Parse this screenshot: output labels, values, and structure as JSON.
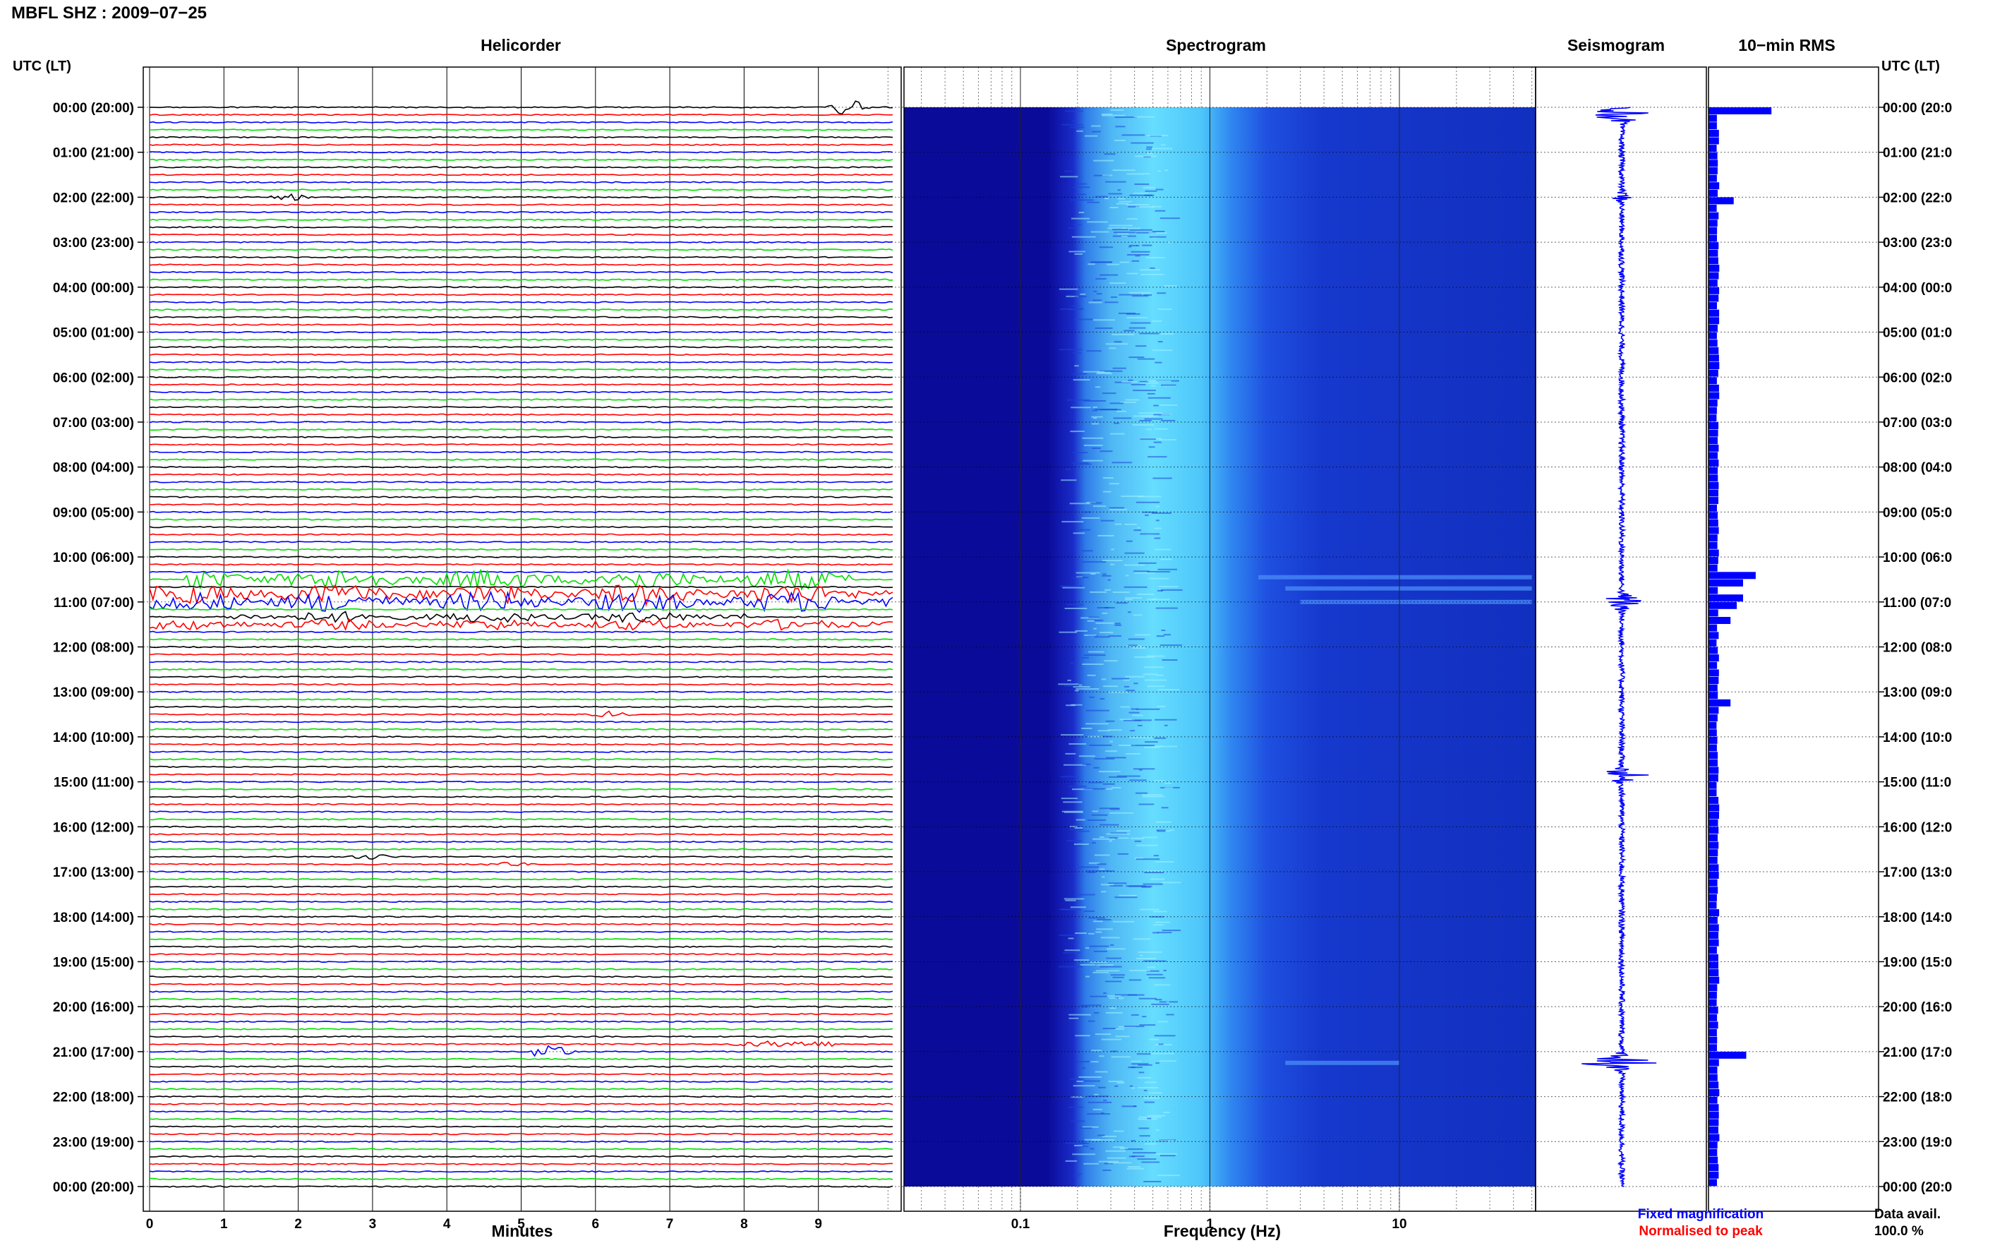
{
  "header": {
    "title": "MBFL SHZ : 2009−07−25"
  },
  "panels": {
    "helicorder": "Helicorder",
    "spectrogram": "Spectrogram",
    "seismogram": "Seismogram",
    "rms": "10−min RMS"
  },
  "axis": {
    "left_title": "UTC (LT)",
    "right_title": "UTC (LT)",
    "minutes_label": "Minutes",
    "frequency_label": "Frequency (Hz)"
  },
  "time_labels": [
    "00:00 (20:00)",
    "01:00 (21:00)",
    "02:00 (22:00)",
    "03:00 (23:00)",
    "04:00 (00:00)",
    "05:00 (01:00)",
    "06:00 (02:00)",
    "07:00 (03:00)",
    "08:00 (04:00)",
    "09:00 (05:00)",
    "10:00 (06:00)",
    "11:00 (07:00)",
    "12:00 (08:00)",
    "13:00 (09:00)",
    "14:00 (10:00)",
    "15:00 (11:00)",
    "16:00 (12:00)",
    "17:00 (13:00)",
    "18:00 (14:00)",
    "19:00 (15:00)",
    "20:00 (16:00)",
    "21:00 (17:00)",
    "22:00 (18:00)",
    "23:00 (19:00)",
    "00:00 (20:00)"
  ],
  "right_time_labels": [
    "00:00 (20:0",
    "01:00 (21:0",
    "02:00 (22:0",
    "03:00 (23:0",
    "04:00 (00:0",
    "05:00 (01:0",
    "06:00 (02:0",
    "07:00 (03:0",
    "08:00 (04:0",
    "09:00 (05:0",
    "10:00 (06:0",
    "11:00 (07:0",
    "12:00 (08:0",
    "13:00 (09:0",
    "14:00 (10:0",
    "15:00 (11:0",
    "16:00 (12:0",
    "17:00 (13:0",
    "18:00 (14:0",
    "19:00 (15:0",
    "20:00 (16:0",
    "21:00 (17:0",
    "22:00 (18:0",
    "23:00 (19:0",
    "00:00 (20:0"
  ],
  "minute_ticks": [
    "0",
    "1",
    "2",
    "3",
    "4",
    "5",
    "6",
    "7",
    "8",
    "9"
  ],
  "freq_ticks": [
    "0.1",
    "1",
    "10"
  ],
  "legend": {
    "fixed": "Fixed magnification",
    "normalised": "Normalised to peak",
    "data_avail": "Data avail.",
    "data_avail_value": "100.0 %"
  },
  "colors": {
    "trace_cycle": [
      "#000000",
      "#ff0000",
      "#0000ff",
      "#00dd00"
    ],
    "spectrogram_dark": "#0b0b9a",
    "spectrogram_mid": "#2a5cf0",
    "spectrogram_bright": "#66ddff",
    "seismogram": "#0000ff",
    "rms_bar": "#0000ff",
    "legend_fixed": "#0000ff",
    "legend_normalised": "#ff0000"
  },
  "chart_data": [
    {
      "type": "line",
      "title": "Helicorder",
      "xlabel": "Minutes",
      "ylabel": "UTC (LT)",
      "xlim": [
        0,
        10
      ],
      "lines_per_hour": 6,
      "total_lines": 144,
      "events": [
        {
          "hour": 0.0,
          "minute": 9.4,
          "amplitude": "large",
          "note": "event at start of day"
        },
        {
          "hour": 2.0,
          "minute": 1.9,
          "amplitude": "small"
        },
        {
          "hour": 10.5,
          "minute_range": [
            0.5,
            9.5
          ],
          "amplitude": "large",
          "note": "repeated bursts"
        },
        {
          "hour": 10.8,
          "minute_range": [
            0,
            10
          ],
          "amplitude": "large"
        },
        {
          "hour": 11.0,
          "minute_range": [
            0,
            10
          ],
          "amplitude": "large"
        },
        {
          "hour": 11.3,
          "minute_range": [
            1,
            8
          ],
          "amplitude": "medium"
        },
        {
          "hour": 11.5,
          "minute_range": [
            0,
            10
          ],
          "amplitude": "medium"
        },
        {
          "hour": 13.5,
          "minute": 6.2,
          "amplitude": "small"
        },
        {
          "hour": 16.67,
          "minute": 3.0,
          "amplitude": "small"
        },
        {
          "hour": 16.8,
          "minute": 4.8,
          "amplitude": "small"
        },
        {
          "hour": 20.83,
          "minute_range": [
            7.8,
            9.2
          ],
          "amplitude": "small"
        },
        {
          "hour": 21.0,
          "minute": 5.4,
          "amplitude": "large"
        }
      ]
    },
    {
      "type": "heatmap",
      "title": "Spectrogram",
      "xlabel": "Frequency (Hz)",
      "xscale": "log",
      "xlim": [
        0.02,
        50
      ],
      "ylim_hours": [
        0,
        24
      ],
      "energy_peak_band_hz": [
        0.25,
        1.2
      ]
    },
    {
      "type": "line",
      "title": "Seismogram",
      "ylim_hours": [
        0,
        24
      ],
      "events": [
        {
          "hour": 0.15,
          "amplitude": 0.55
        },
        {
          "hour": 2.0,
          "amplitude": 0.15
        },
        {
          "hour": 11.0,
          "amplitude": 0.45
        },
        {
          "hour": 14.85,
          "amplitude": 0.35
        },
        {
          "hour": 21.25,
          "amplitude": 0.65
        }
      ]
    },
    {
      "type": "bar",
      "title": "10−min RMS",
      "orientation": "horizontal",
      "bins_per_hour": 6,
      "baseline_relative": 0.15,
      "peaks": [
        {
          "hour": 0.1,
          "value": 1.0
        },
        {
          "hour": 2.05,
          "value": 0.4
        },
        {
          "hour": 10.4,
          "value": 0.75
        },
        {
          "hour": 10.6,
          "value": 0.55
        },
        {
          "hour": 10.9,
          "value": 0.55
        },
        {
          "hour": 11.1,
          "value": 0.45
        },
        {
          "hour": 11.35,
          "value": 0.35
        },
        {
          "hour": 13.2,
          "value": 0.35
        },
        {
          "hour": 21.15,
          "value": 0.6
        }
      ]
    }
  ]
}
